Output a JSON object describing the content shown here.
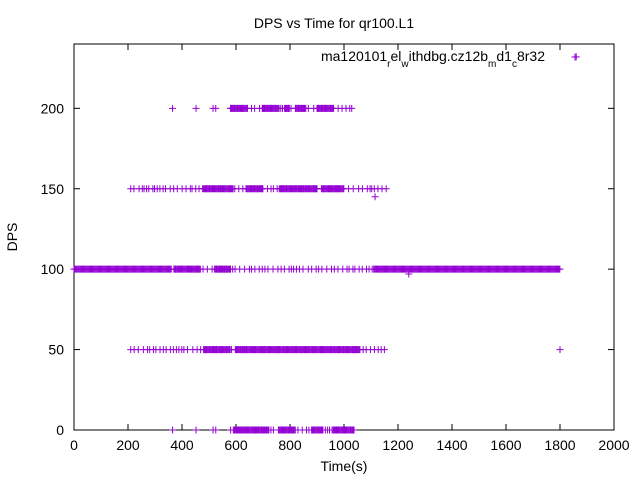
{
  "chart_data": {
    "type": "scatter",
    "title": "DPS vs Time for qr100.L1",
    "xlabel": "Time(s)",
    "ylabel": "DPS",
    "xlim": [
      0,
      2000
    ],
    "ylim": [
      0,
      240
    ],
    "xticks": [
      0,
      200,
      400,
      600,
      800,
      1000,
      1200,
      1400,
      1600,
      1800,
      2000
    ],
    "yticks": [
      0,
      50,
      100,
      150,
      200
    ],
    "grid": false,
    "legend_position": "top-right",
    "marker": "plus",
    "series": [
      {
        "name": "ma120101_rel_withdbg.cz12b_md1_c8r32",
        "legend_parts": [
          "ma120101",
          "r",
          "el",
          "w",
          "ithdbg.cz12b",
          "m",
          "d1",
          "c",
          "8r32"
        ],
        "color": "#9400d3",
        "bands": [
          {
            "y": 100,
            "dense": [
              [
                0,
                360
              ],
              [
                370,
                470
              ],
              [
                520,
                580
              ],
              [
                1110,
                1800
              ]
            ],
            "sparse": [
              [
                360,
                1110
              ]
            ]
          },
          {
            "y": 150,
            "sparse": [
              [
                210,
                1160
              ]
            ],
            "dense": [
              [
                480,
                590
              ],
              [
                640,
                700
              ],
              [
                760,
                900
              ],
              [
                920,
                1000
              ]
            ]
          },
          {
            "y": 50,
            "sparse": [
              [
                210,
                1160
              ]
            ],
            "dense": [
              [
                480,
                580
              ],
              [
                600,
                1060
              ]
            ]
          },
          {
            "y": 200,
            "sparse": [
              [
                580,
                1040
              ]
            ],
            "dense": [
              [
                580,
                640
              ],
              [
                700,
                760
              ],
              [
                780,
                800
              ],
              [
                820,
                860
              ],
              [
                900,
                960
              ]
            ]
          },
          {
            "y": 0,
            "sparse": [
              [
                580,
                1040
              ]
            ],
            "dense": [
              [
                590,
                720
              ],
              [
                760,
                820
              ],
              [
                880,
                920
              ],
              [
                960,
                1040
              ]
            ]
          }
        ],
        "points": [
          {
            "x": 365,
            "y": 200
          },
          {
            "x": 452,
            "y": 200
          },
          {
            "x": 515,
            "y": 200
          },
          {
            "x": 525,
            "y": 200
          },
          {
            "x": 365,
            "y": 0
          },
          {
            "x": 452,
            "y": 0
          },
          {
            "x": 515,
            "y": 0
          },
          {
            "x": 525,
            "y": 0
          },
          {
            "x": 1115,
            "y": 145
          },
          {
            "x": 1240,
            "y": 97
          },
          {
            "x": 1800,
            "y": 50
          },
          {
            "x": 1860,
            "y": 232
          }
        ]
      }
    ]
  }
}
